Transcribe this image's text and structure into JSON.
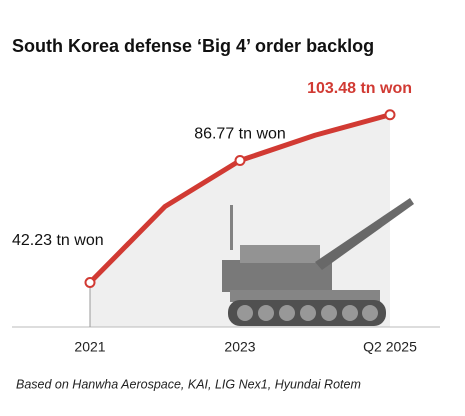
{
  "chart_data": {
    "type": "line",
    "title": "South Korea defense ‘Big 4’ order backlog",
    "categories": [
      "2021",
      null,
      "2023",
      null,
      "Q2 2025"
    ],
    "values": [
      42.23,
      70,
      86.77,
      96,
      103.48
    ],
    "value_labels": [
      "42.23 tn won",
      null,
      "86.77 tn won",
      null,
      "103.48 tn won"
    ],
    "color": "#d13a33",
    "ylim": [
      26,
      120
    ],
    "note": "Based on Hanwha Aerospace, KAI, LIG Nex1, Hyundai Rotem"
  }
}
